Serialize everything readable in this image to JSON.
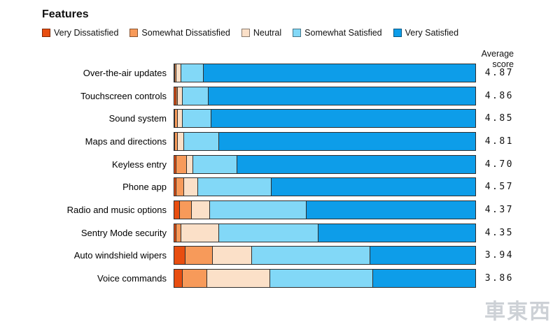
{
  "title": "Features",
  "avg_header": {
    "line1": "Average",
    "line2": "score"
  },
  "watermark": "車東西",
  "chart_data": {
    "type": "bar",
    "subtype": "horizontal-stacked-100-percent",
    "title": "Features",
    "unit": "percent",
    "legend_position": "top",
    "segments": [
      "Very Dissatisfied",
      "Somewhat Dissatisfied",
      "Neutral",
      "Somewhat Satisfied",
      "Very Satisfied"
    ],
    "colors": [
      "#e84e10",
      "#f79a5a",
      "#fbe0c8",
      "#82d8f7",
      "#0d9de9"
    ],
    "score_column_header": "Average score",
    "rows": [
      {
        "label": "Over-the-air updates",
        "values": [
          0.5,
          0.5,
          1.5,
          7.5,
          90
        ],
        "score": "4.87"
      },
      {
        "label": "Touchscreen controls",
        "values": [
          1,
          0.5,
          1.5,
          8.5,
          88.5
        ],
        "score": "4.86"
      },
      {
        "label": "Sound system",
        "values": [
          0.5,
          1,
          1.5,
          9.5,
          87.5
        ],
        "score": "4.85"
      },
      {
        "label": "Maps and directions",
        "values": [
          0.5,
          1,
          2,
          11.5,
          85
        ],
        "score": "4.81"
      },
      {
        "label": "Keyless entry",
        "values": [
          1,
          3.5,
          2,
          14.5,
          79
        ],
        "score": "4.70"
      },
      {
        "label": "Phone app",
        "values": [
          1,
          2.5,
          4.5,
          24.5,
          67.5
        ],
        "score": "4.57"
      },
      {
        "label": "Radio and music options",
        "values": [
          2,
          4,
          6,
          32,
          56
        ],
        "score": "4.37"
      },
      {
        "label": "Sentry Mode security",
        "values": [
          1,
          1.5,
          12.5,
          33,
          52
        ],
        "score": "4.35"
      },
      {
        "label": "Auto windshield wipers",
        "values": [
          4,
          9,
          13,
          39,
          35
        ],
        "score": "3.94"
      },
      {
        "label": "Voice commands",
        "values": [
          3,
          8,
          21,
          34,
          34
        ],
        "score": "3.86"
      }
    ]
  }
}
